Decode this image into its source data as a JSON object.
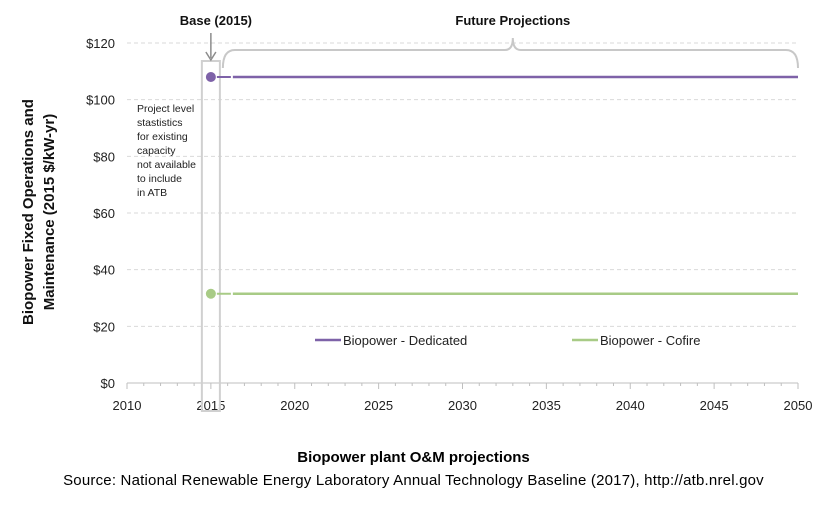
{
  "chart_data": {
    "type": "line",
    "ylabel": [
      "Biopower Fixed Operations and",
      "Maintenance (2015 $/kW-yr)"
    ],
    "xlabel": "",
    "xlim": [
      2010,
      2050
    ],
    "ylim": [
      0,
      120
    ],
    "x_ticks": [
      "2010",
      "2015",
      "2020",
      "2025",
      "2030",
      "2035",
      "2040",
      "2045",
      "2050"
    ],
    "y_ticks": [
      "$0",
      "$20",
      "$40",
      "$60",
      "$80",
      "$100",
      "$120"
    ],
    "grid": "horizontal dashed",
    "legend_position": "bottom",
    "series": [
      {
        "name": "Biopower - Dedicated",
        "color": "#7e62a8",
        "base": {
          "x": 2015,
          "y": 108
        },
        "x": [
          2015,
          2050
        ],
        "y": [
          108,
          108
        ]
      },
      {
        "name": "Biopower - Cofire",
        "color": "#a8cb86",
        "base": {
          "x": 2015,
          "y": 31.5
        },
        "x": [
          2015,
          2050
        ],
        "y": [
          31.5,
          31.5
        ]
      }
    ],
    "annotations": {
      "base_label": "Base (2015)",
      "future_label": "Future Projections",
      "note_lines": [
        "Project level",
        "stastistics",
        "for existing",
        "capacity",
        "not available",
        "to include",
        "in ATB"
      ]
    }
  },
  "caption": {
    "title": "Biopower plant O&M projections",
    "source": "Source:  National Renewable Energy Laboratory Annual Technology  Baseline (2017), http://atb.nrel.gov"
  }
}
